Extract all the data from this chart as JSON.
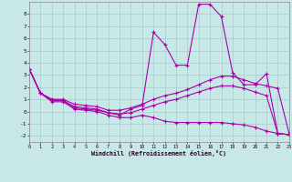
{
  "xlabel": "Windchill (Refroidissement éolien,°C)",
  "xlim": [
    0,
    23
  ],
  "ylim": [
    -2.5,
    9.0
  ],
  "xticks": [
    0,
    1,
    2,
    3,
    4,
    5,
    6,
    7,
    8,
    9,
    10,
    11,
    12,
    13,
    14,
    15,
    16,
    17,
    18,
    19,
    20,
    21,
    22,
    23
  ],
  "yticks": [
    -2,
    -1,
    0,
    1,
    2,
    3,
    4,
    5,
    6,
    7,
    8
  ],
  "bg_color": "#c8e8e8",
  "grid_color": "#a0c4c4",
  "line_color": "#aa00aa",
  "line1_x": [
    0,
    1,
    2,
    3,
    4,
    5,
    6,
    7,
    8,
    9,
    10,
    11,
    12,
    13,
    14,
    15,
    16,
    17,
    18,
    19,
    20,
    21,
    22,
    23
  ],
  "line1_y": [
    3.5,
    1.5,
    1.0,
    0.9,
    0.3,
    0.2,
    0.1,
    -0.1,
    -0.3,
    0.2,
    0.5,
    6.5,
    5.5,
    3.8,
    3.8,
    8.8,
    8.8,
    7.8,
    3.2,
    2.2,
    2.2,
    3.1,
    -1.8,
    -1.9
  ],
  "line2_x": [
    0,
    1,
    2,
    3,
    4,
    5,
    6,
    7,
    8,
    9,
    10,
    11,
    12,
    13,
    14,
    15,
    16,
    17,
    18,
    19,
    20,
    21,
    22,
    23
  ],
  "line2_y": [
    3.5,
    1.5,
    1.0,
    1.0,
    0.6,
    0.5,
    0.4,
    0.1,
    0.1,
    0.3,
    0.6,
    1.0,
    1.3,
    1.5,
    1.8,
    2.2,
    2.6,
    2.9,
    2.9,
    2.6,
    2.3,
    2.1,
    1.9,
    -1.8
  ],
  "line3_x": [
    0,
    1,
    2,
    3,
    4,
    5,
    6,
    7,
    8,
    9,
    10,
    11,
    12,
    13,
    14,
    15,
    16,
    17,
    18,
    19,
    20,
    21,
    22,
    23
  ],
  "line3_y": [
    3.5,
    1.5,
    0.9,
    0.9,
    0.4,
    0.3,
    0.2,
    -0.1,
    -0.2,
    -0.1,
    0.2,
    0.5,
    0.8,
    1.0,
    1.3,
    1.6,
    1.9,
    2.1,
    2.1,
    1.9,
    1.6,
    1.3,
    -1.8,
    -1.9
  ],
  "line4_x": [
    0,
    1,
    2,
    3,
    4,
    5,
    6,
    7,
    8,
    9,
    10,
    11,
    12,
    13,
    14,
    15,
    16,
    17,
    18,
    19,
    20,
    21,
    22,
    23
  ],
  "line4_y": [
    3.5,
    1.5,
    0.8,
    0.8,
    0.2,
    0.1,
    0.0,
    -0.3,
    -0.5,
    -0.5,
    -0.3,
    -0.5,
    -0.8,
    -0.9,
    -0.9,
    -0.9,
    -0.9,
    -0.9,
    -1.0,
    -1.1,
    -1.3,
    -1.6,
    -1.8,
    -1.9
  ]
}
